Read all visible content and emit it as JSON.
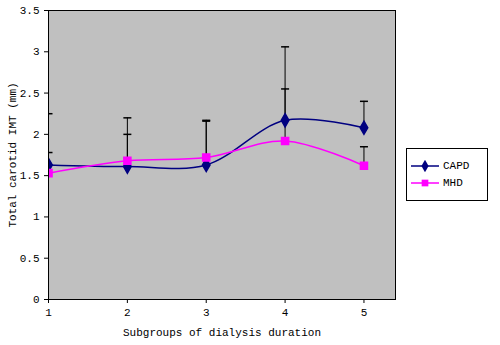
{
  "chart_data": {
    "type": "line",
    "x_label": "Subgroups of dialysis duration",
    "y_label": "Total carotid IMT (mm)",
    "x": [
      1,
      2,
      3,
      4,
      5
    ],
    "xlim": [
      1,
      5.4
    ],
    "xticks": [
      1,
      2,
      3,
      4,
      5
    ],
    "ylim": [
      0,
      3.5
    ],
    "yticks": [
      0,
      0.5,
      1,
      1.5,
      2,
      2.5,
      3,
      3.5
    ],
    "grid": false,
    "legend": "right",
    "line_style": "smooth",
    "series": [
      {
        "name": "CAPD",
        "color": "#000080",
        "marker": "diamond",
        "values": [
          1.63,
          1.61,
          1.63,
          2.17,
          2.08
        ],
        "errors": [
          0.62,
          0.59,
          0.53,
          0.89,
          0.32
        ]
      },
      {
        "name": "MHD",
        "color": "#ff00ff",
        "marker": "square",
        "values": [
          1.53,
          1.68,
          1.72,
          1.92,
          1.62
        ],
        "errors": [
          0.25,
          0.32,
          0.45,
          0.63,
          0.23
        ]
      }
    ]
  }
}
